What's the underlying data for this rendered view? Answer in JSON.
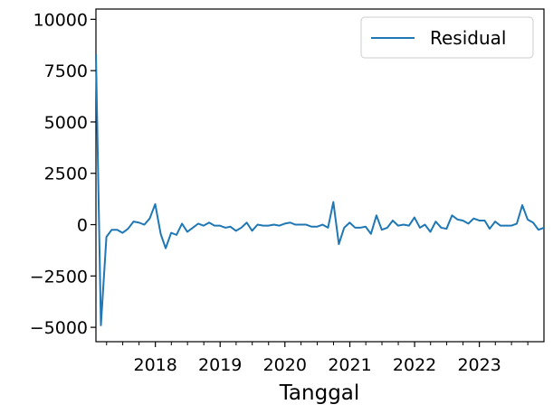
{
  "chart_data": {
    "type": "line",
    "xlabel": "Tanggal",
    "ylabel": "",
    "title": "",
    "xlim": [
      "2017-01-31",
      "2023-12-31"
    ],
    "ylim": [
      -5700,
      10500
    ],
    "y_ticks": [
      10000,
      7500,
      5000,
      2500,
      0,
      -2500,
      -5000
    ],
    "y_tick_labels": [
      "10000",
      "7500",
      "5000",
      "2500",
      "0",
      "−2500",
      "−5000"
    ],
    "x_major_ticks": [
      "2018-01",
      "2019-01",
      "2020-01",
      "2021-01",
      "2022-01",
      "2023-01"
    ],
    "x_major_labels": [
      "2018",
      "2019",
      "2020",
      "2021",
      "2022",
      "2023"
    ],
    "x_minor_ticks": [
      "2017-04",
      "2017-07",
      "2017-10",
      "2018-04",
      "2018-07",
      "2018-10",
      "2019-04",
      "2019-07",
      "2019-10",
      "2020-04",
      "2020-07",
      "2020-10",
      "2021-04",
      "2021-07",
      "2021-10",
      "2022-04",
      "2022-07",
      "2022-10",
      "2023-04",
      "2023-07",
      "2023-10"
    ],
    "legend": {
      "placement": "upper-right"
    },
    "grid": false,
    "colors": {
      "series": "#1f77b4"
    },
    "series": [
      {
        "name": "Residual",
        "x": [
          "2017-01",
          "2017-02",
          "2017-03",
          "2017-04",
          "2017-05",
          "2017-06",
          "2017-07",
          "2017-08",
          "2017-09",
          "2017-10",
          "2017-11",
          "2017-12",
          "2018-01",
          "2018-02",
          "2018-03",
          "2018-04",
          "2018-05",
          "2018-06",
          "2018-07",
          "2018-08",
          "2018-09",
          "2018-10",
          "2018-11",
          "2018-12",
          "2019-01",
          "2019-02",
          "2019-03",
          "2019-04",
          "2019-05",
          "2019-06",
          "2019-07",
          "2019-08",
          "2019-09",
          "2019-10",
          "2019-11",
          "2019-12",
          "2020-01",
          "2020-02",
          "2020-03",
          "2020-04",
          "2020-05",
          "2020-06",
          "2020-07",
          "2020-08",
          "2020-09",
          "2020-10",
          "2020-11",
          "2020-12",
          "2021-01",
          "2021-02",
          "2021-03",
          "2021-04",
          "2021-05",
          "2021-06",
          "2021-07",
          "2021-08",
          "2021-09",
          "2021-10",
          "2021-11",
          "2021-12",
          "2022-01",
          "2022-02",
          "2022-03",
          "2022-04",
          "2022-05",
          "2022-06",
          "2022-07",
          "2022-08",
          "2022-09",
          "2022-10",
          "2022-11",
          "2022-12",
          "2023-01",
          "2023-02",
          "2023-03",
          "2023-04",
          "2023-05",
          "2023-06",
          "2023-07",
          "2023-08",
          "2023-09",
          "2023-10",
          "2023-11",
          "2023-12"
        ],
        "values": [
          8300,
          -4900,
          -600,
          -250,
          -250,
          -400,
          -200,
          150,
          100,
          0,
          300,
          1000,
          -450,
          -1150,
          -400,
          -500,
          50,
          -350,
          -150,
          50,
          -50,
          100,
          -50,
          -50,
          -150,
          -100,
          -300,
          -150,
          100,
          -300,
          0,
          -50,
          -50,
          0,
          -50,
          50,
          100,
          0,
          0,
          0,
          -100,
          -100,
          0,
          -150,
          1100,
          -950,
          -150,
          100,
          -150,
          -150,
          -100,
          -450,
          450,
          -250,
          -150,
          200,
          -50,
          0,
          -50,
          350,
          -150,
          0,
          -350,
          150,
          -150,
          -200,
          450,
          250,
          200,
          50,
          300,
          200,
          200,
          -200,
          150,
          -50,
          -50,
          -50,
          50,
          950,
          250,
          100,
          -250,
          -150
        ]
      }
    ]
  }
}
